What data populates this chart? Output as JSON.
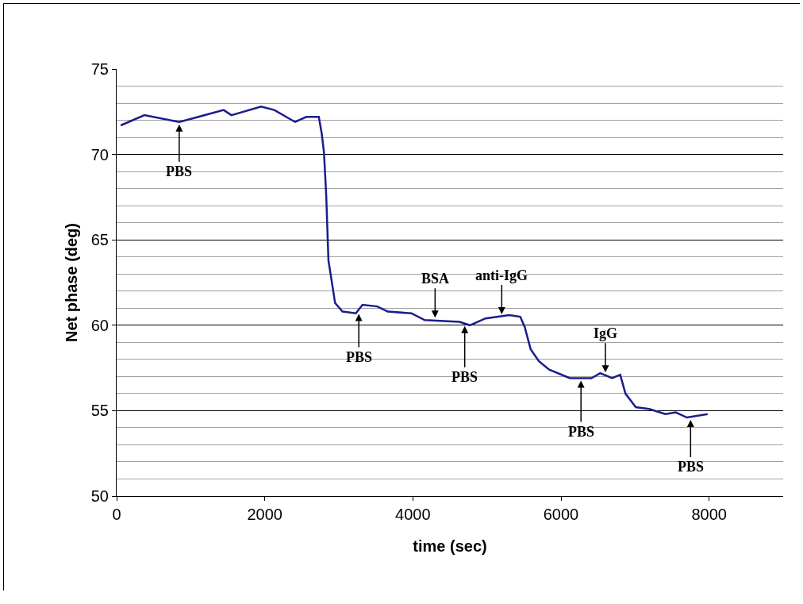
{
  "chart_data": {
    "type": "line",
    "xlabel": "time (sec)",
    "ylabel": "Net phase (deg)",
    "xlim": [
      0,
      9000
    ],
    "xticks": [
      0,
      2000,
      4000,
      6000,
      8000
    ],
    "ylim": [
      50,
      75
    ],
    "yticks": [
      50,
      {
        "value": 51,
        "label": null
      },
      {
        "value": 52,
        "label": null
      },
      {
        "value": 53,
        "label": null
      },
      {
        "value": 54,
        "label": null
      },
      55,
      {
        "value": 56,
        "label": null
      },
      {
        "value": 57,
        "label": null
      },
      {
        "value": 58,
        "label": null
      },
      {
        "value": 59,
        "label": null
      },
      60,
      {
        "value": 61,
        "label": null
      },
      {
        "value": 62,
        "label": null
      },
      {
        "value": 63,
        "label": null
      },
      {
        "value": 64,
        "label": null
      },
      65,
      {
        "value": 66,
        "label": null
      },
      {
        "value": 67,
        "label": null
      },
      {
        "value": 68,
        "label": null
      },
      {
        "value": 69,
        "label": null
      },
      70,
      {
        "value": 71,
        "label": null
      },
      {
        "value": 72,
        "label": null
      },
      {
        "value": 73,
        "label": null
      },
      {
        "value": 74,
        "label": null
      },
      75
    ],
    "grid": "y",
    "marker": "none",
    "line_style": "solid",
    "series": [
      {
        "color": "#1c1c8c",
        "x": [
          55,
          375,
          845,
          1445,
          1550,
          1950,
          2130,
          2410,
          2560,
          2730,
          2770,
          2800,
          2830,
          2860,
          2950,
          3050,
          3230,
          3320,
          3520,
          3660,
          3980,
          4160,
          4630,
          4770,
          4980,
          5300,
          5450,
          5510,
          5590,
          5700,
          5840,
          6120,
          6410,
          6530,
          6690,
          6800,
          6870,
          7010,
          7190,
          7410,
          7550,
          7700,
          7980
        ],
        "values": [
          71.7,
          72.3,
          71.9,
          72.6,
          72.3,
          72.8,
          72.6,
          71.9,
          72.2,
          72.2,
          71.2,
          70.1,
          67.6,
          63.8,
          61.3,
          60.8,
          60.7,
          61.2,
          61.1,
          60.8,
          60.7,
          60.3,
          60.2,
          60.0,
          60.4,
          60.6,
          60.5,
          59.9,
          58.6,
          57.9,
          57.4,
          56.9,
          56.9,
          57.2,
          56.9,
          57.1,
          56.0,
          55.2,
          55.1,
          54.8,
          54.9,
          54.6,
          54.8
        ]
      }
    ],
    "annotations": [
      {
        "text": "PBS",
        "x": 845,
        "y": 71.9
      },
      {
        "text": "PBS",
        "x": 3270,
        "y": 60.8
      },
      {
        "text": "BSA",
        "x": 4300,
        "y": 60.3
      },
      {
        "text": "anti-IgG",
        "x": 5200,
        "y": 60.5
      },
      {
        "text": "PBS",
        "x": 4700,
        "y": 60.1
      },
      {
        "text": "PBS",
        "x": 6270,
        "y": 56.9
      },
      {
        "text": "IgG",
        "x": 6600,
        "y": 57.1
      },
      {
        "text": "PBS",
        "x": 7750,
        "y": 54.6
      }
    ]
  }
}
